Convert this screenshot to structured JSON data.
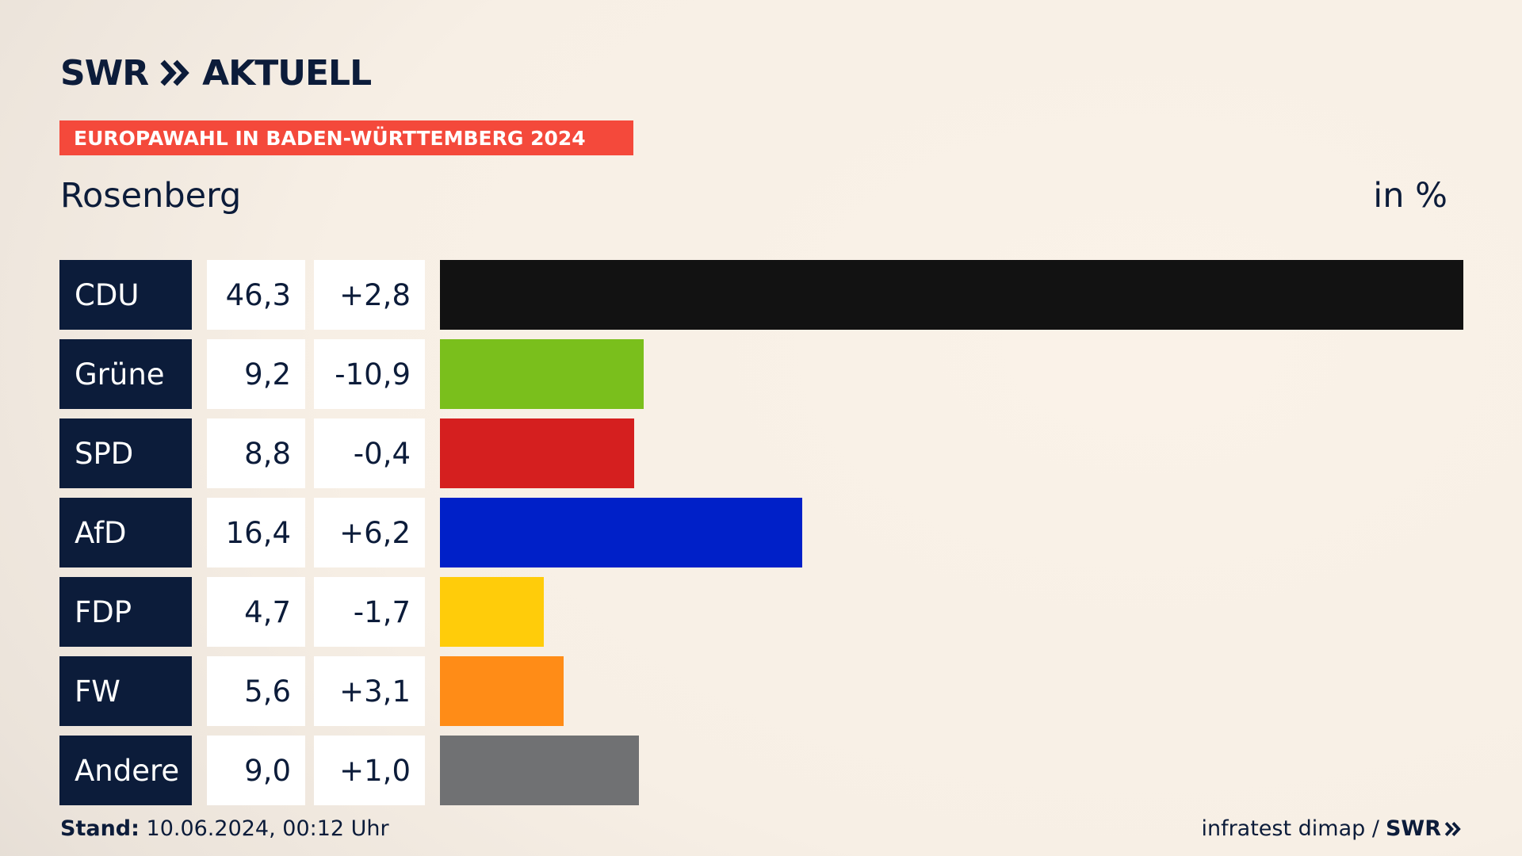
{
  "header": {
    "logo_text": "SWR",
    "logo_suffix": "AKTUELL",
    "tag": "EUROPAWAHL IN BADEN-WÜRTTEMBERG 2024",
    "region": "Rosenberg",
    "unit": "in %"
  },
  "colors": {
    "navy": "#0c1c3a",
    "tag_red": "#f4493b"
  },
  "chart_data": {
    "type": "bar",
    "orientation": "horizontal",
    "title": "Rosenberg",
    "unit": "in %",
    "categories": [
      "CDU",
      "Grüne",
      "SPD",
      "AfD",
      "FDP",
      "FW",
      "Andere"
    ],
    "values": [
      46.3,
      9.2,
      8.8,
      16.4,
      4.7,
      5.6,
      9.0
    ],
    "value_labels": [
      "46,3",
      "9,2",
      "8,8",
      "16,4",
      "4,7",
      "5,6",
      "9,0"
    ],
    "diff_labels": [
      "+2,8",
      "-10,9",
      "-0,4",
      "+6,2",
      "-1,7",
      "+3,1",
      "+1,0"
    ],
    "bar_colors": [
      "#121212",
      "#7abf1c",
      "#d51f1f",
      "#0020c8",
      "#ffcc0a",
      "#ff8c17",
      "#707173"
    ],
    "xlim": [
      0,
      46.3
    ],
    "grid": false,
    "legend": "none"
  },
  "footer": {
    "stand_label": "Stand:",
    "stand_value": "10.06.2024, 00:12 Uhr",
    "source": "infratest dimap /",
    "source_logo": "SWR"
  }
}
